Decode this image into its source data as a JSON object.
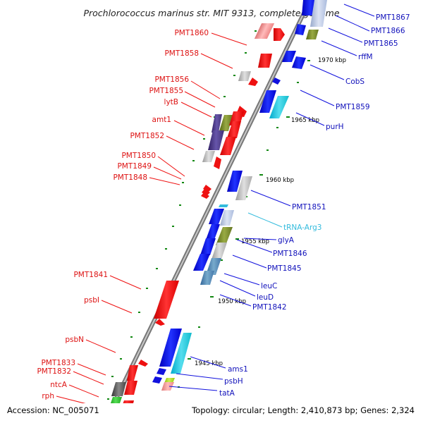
{
  "title": "Prochlorococcus marinus str. MIT 9313, complete genome",
  "footer": {
    "accession": "Accession: NC_005071",
    "topology": "Topology: circular; Length: 2,410,873 bp; Genes: 2,324"
  },
  "colors": {
    "forward_strand": "#ee1111",
    "reverse_strand": "#1111dd",
    "rna": "#33bbdd",
    "backbone": "#888888",
    "tick": "#118811"
  },
  "kbp_markers": [
    "1970 kbp",
    "1965 kbp",
    "1960 kbp",
    "1955 kbp",
    "1950 kbp",
    "1945 kbp"
  ],
  "left_labels": [
    "PMT1860",
    "PMT1858",
    "PMT1856",
    "PMT1855",
    "lytB",
    "amt1",
    "PMT1852",
    "PMT1850",
    "PMT1849",
    "PMT1848",
    "PMT1841",
    "psbI",
    "psbN",
    "PMT1833",
    "PMT1832",
    "ntcA",
    "rph"
  ],
  "right_labels": [
    "PMT1867",
    "PMT1866",
    "PMT1865",
    "rffM",
    "CobS",
    "PMT1859",
    "purH",
    "PMT1851",
    "tRNA-Arg3",
    "glyA",
    "PMT1846",
    "PMT1845",
    "leuC",
    "leuD",
    "PMT1842",
    "ams1",
    "psbH",
    "tatA"
  ]
}
